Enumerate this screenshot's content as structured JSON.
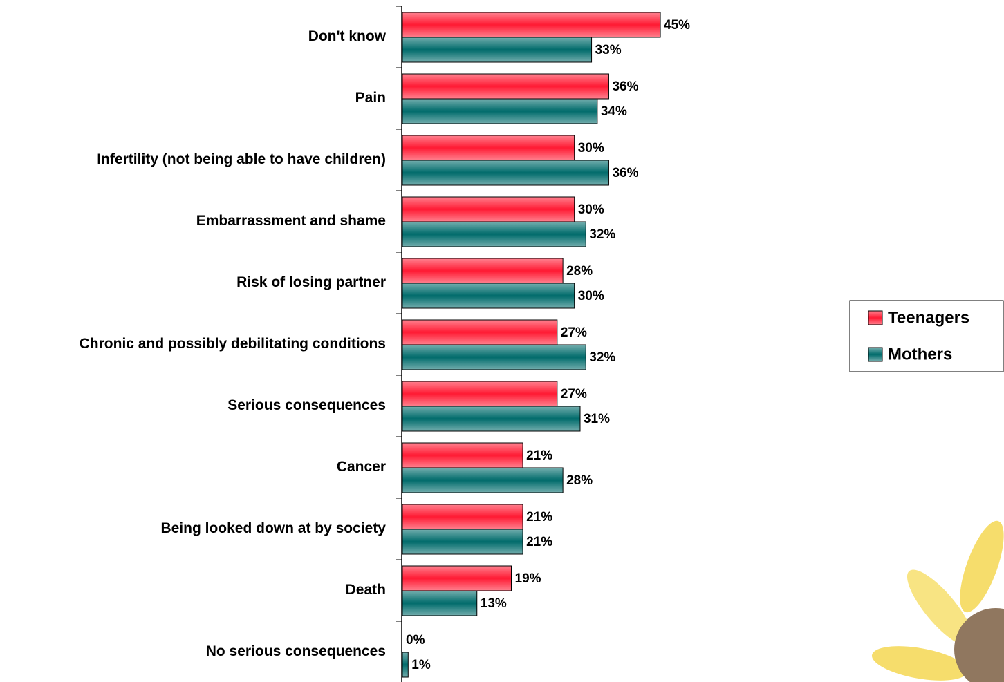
{
  "chart_data": {
    "type": "bar",
    "orientation": "horizontal",
    "categories": [
      "Don't know",
      "Pain",
      "Infertility (not being able to have children)",
      "Embarrassment and shame",
      "Risk of losing partner",
      "Chronic and possibly debilitating conditions",
      "Serious consequences",
      "Cancer",
      "Being looked down at by society",
      "Death",
      "No serious consequences"
    ],
    "series": [
      {
        "name": "Teenagers",
        "color": "#ff1a33",
        "values": [
          45,
          36,
          30,
          30,
          28,
          27,
          27,
          21,
          21,
          19,
          0
        ],
        "value_labels": [
          "45%",
          "36%",
          "30%",
          "30%",
          "28%",
          "27%",
          "27%",
          "21%",
          "21%",
          "19%",
          "0%"
        ]
      },
      {
        "name": "Mothers",
        "color": "#006b6b",
        "values": [
          33,
          34,
          36,
          32,
          30,
          32,
          31,
          28,
          21,
          13,
          1
        ],
        "value_labels": [
          "33%",
          "34%",
          "36%",
          "32%",
          "30%",
          "32%",
          "31%",
          "28%",
          "21%",
          "13%",
          "1%"
        ]
      }
    ],
    "legend": "right"
  }
}
